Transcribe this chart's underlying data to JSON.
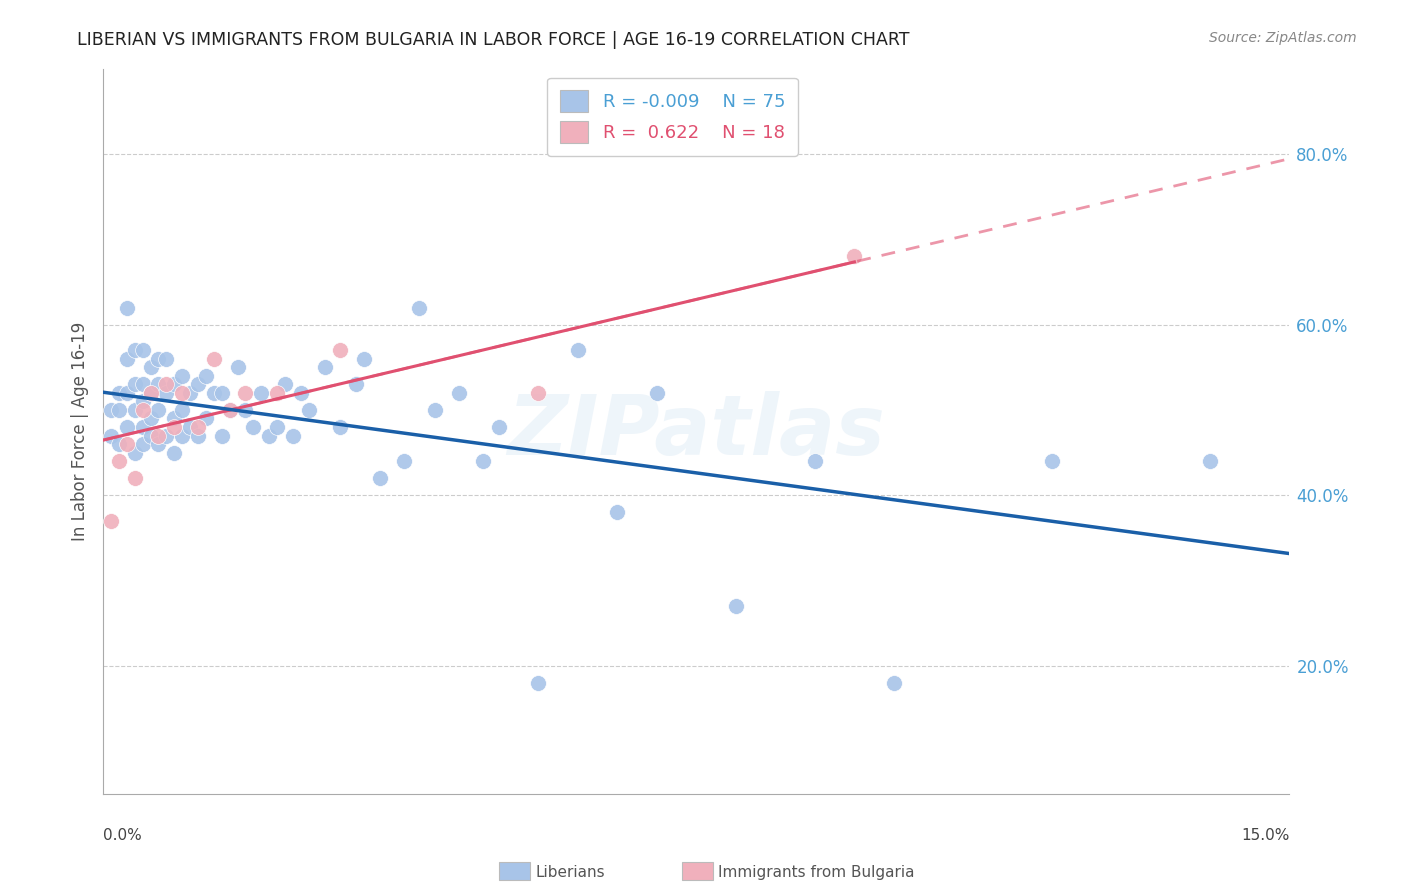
{
  "title": "LIBERIAN VS IMMIGRANTS FROM BULGARIA IN LABOR FORCE | AGE 16-19 CORRELATION CHART",
  "source": "Source: ZipAtlas.com",
  "ylabel_label": "In Labor Force | Age 16-19",
  "R_liberian": -0.009,
  "N_liberian": 75,
  "R_bulgaria": 0.622,
  "N_bulgaria": 18,
  "liberian_color": "#a8c4e8",
  "liberian_line_color": "#1a5fa8",
  "bulgaria_color": "#f0b0bc",
  "bulgaria_line_color": "#e05070",
  "watermark": "ZIPatlas",
  "liberian_x": [
    0.001,
    0.001,
    0.002,
    0.002,
    0.002,
    0.003,
    0.003,
    0.003,
    0.003,
    0.004,
    0.004,
    0.004,
    0.004,
    0.005,
    0.005,
    0.005,
    0.005,
    0.005,
    0.006,
    0.006,
    0.006,
    0.006,
    0.007,
    0.007,
    0.007,
    0.007,
    0.008,
    0.008,
    0.008,
    0.009,
    0.009,
    0.009,
    0.01,
    0.01,
    0.01,
    0.011,
    0.011,
    0.012,
    0.012,
    0.013,
    0.013,
    0.014,
    0.015,
    0.015,
    0.016,
    0.017,
    0.018,
    0.019,
    0.02,
    0.021,
    0.022,
    0.023,
    0.024,
    0.025,
    0.026,
    0.028,
    0.03,
    0.032,
    0.033,
    0.035,
    0.038,
    0.04,
    0.042,
    0.045,
    0.048,
    0.05,
    0.055,
    0.06,
    0.065,
    0.07,
    0.08,
    0.09,
    0.1,
    0.12,
    0.14
  ],
  "liberian_y": [
    0.47,
    0.5,
    0.46,
    0.5,
    0.52,
    0.48,
    0.52,
    0.56,
    0.62,
    0.45,
    0.5,
    0.53,
    0.57,
    0.46,
    0.48,
    0.51,
    0.53,
    0.57,
    0.47,
    0.49,
    0.52,
    0.55,
    0.46,
    0.5,
    0.53,
    0.56,
    0.47,
    0.52,
    0.56,
    0.45,
    0.49,
    0.53,
    0.47,
    0.5,
    0.54,
    0.48,
    0.52,
    0.47,
    0.53,
    0.49,
    0.54,
    0.52,
    0.47,
    0.52,
    0.5,
    0.55,
    0.5,
    0.48,
    0.52,
    0.47,
    0.48,
    0.53,
    0.47,
    0.52,
    0.5,
    0.55,
    0.48,
    0.53,
    0.56,
    0.42,
    0.44,
    0.62,
    0.5,
    0.52,
    0.44,
    0.48,
    0.18,
    0.57,
    0.38,
    0.52,
    0.27,
    0.44,
    0.18,
    0.44,
    0.44
  ],
  "bulgaria_x": [
    0.001,
    0.002,
    0.003,
    0.004,
    0.005,
    0.006,
    0.007,
    0.008,
    0.009,
    0.01,
    0.012,
    0.014,
    0.016,
    0.018,
    0.022,
    0.03,
    0.055,
    0.095
  ],
  "bulgaria_y": [
    0.37,
    0.44,
    0.46,
    0.42,
    0.5,
    0.52,
    0.47,
    0.53,
    0.48,
    0.52,
    0.48,
    0.56,
    0.5,
    0.52,
    0.52,
    0.57,
    0.52,
    0.68
  ],
  "xmin": 0.0,
  "xmax": 0.15,
  "ymin": 0.05,
  "ymax": 0.9,
  "ytick_vals": [
    0.2,
    0.4,
    0.6,
    0.8
  ],
  "ytick_labels": [
    "20.0%",
    "40.0%",
    "60.0%",
    "80.0%"
  ]
}
